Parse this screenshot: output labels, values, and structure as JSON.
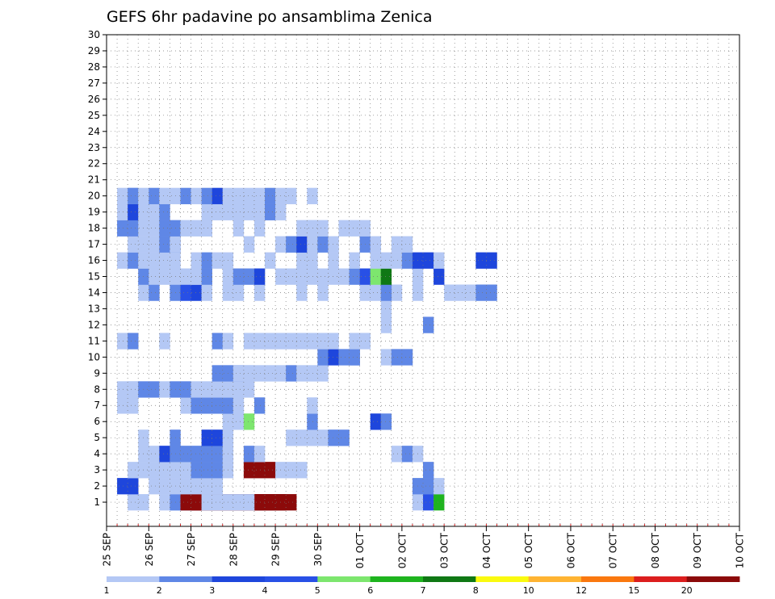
{
  "chart_data": {
    "type": "heatmap",
    "title": "GEFS 6hr padavine po ansamblima Zenica",
    "xlabel": "",
    "ylabel": "",
    "x_ticks": [
      "25 SEP",
      "26 SEP",
      "27 SEP",
      "28 SEP",
      "29 SEP",
      "30 SEP",
      "01 OCT",
      "02 OCT",
      "03 OCT",
      "04 OCT",
      "05 OCT",
      "06 OCT",
      "07 OCT",
      "08 OCT",
      "09 OCT",
      "10 OCT"
    ],
    "x_range": [
      "25 SEP 00Z",
      "10 OCT 00Z"
    ],
    "y_ticks": [
      "1",
      "2",
      "3",
      "4",
      "5",
      "6",
      "7",
      "8",
      "9",
      "10",
      "11",
      "12",
      "13",
      "14",
      "15",
      "16",
      "17",
      "18",
      "19",
      "20",
      "21",
      "22",
      "23",
      "24",
      "25",
      "26",
      "27",
      "28",
      "29",
      "30"
    ],
    "grid": true,
    "time_step_hours": 6,
    "colorbar": {
      "labels": [
        "1",
        "2",
        "3",
        "4",
        "5",
        "6",
        "7",
        "8",
        "10",
        "12",
        "15",
        "20"
      ],
      "colors": [
        "#b4c8f5",
        "#5f87e6",
        "#1e46dc",
        "#2850e6",
        "#7de66e",
        "#1eb41e",
        "#0f7814",
        "#fafa0f",
        "#ffb432",
        "#fa780f",
        "#dc1e1e",
        "#8c0a0a"
      ]
    },
    "cells": [
      [
        1,
        2,
        2,
        1
      ],
      [
        1,
        5,
        9,
        1
      ],
      [
        1,
        6,
        9,
        2
      ],
      [
        1,
        7,
        9,
        1
      ],
      [
        1,
        7,
        10,
        12
      ],
      [
        1,
        8,
        10,
        12
      ],
      [
        1,
        9,
        5,
        1
      ],
      [
        1,
        29,
        1,
        1
      ],
      [
        1,
        30,
        1,
        4
      ],
      [
        1,
        31,
        1,
        6
      ],
      [
        2,
        1,
        2,
        3
      ],
      [
        2,
        4,
        2,
        1
      ],
      [
        2,
        6,
        1,
        1
      ],
      [
        2,
        7,
        4,
        1
      ],
      [
        2,
        9,
        1,
        1
      ],
      [
        2,
        29,
        2,
        2
      ],
      [
        2,
        31,
        1,
        1
      ],
      [
        3,
        2,
        3,
        1
      ],
      [
        3,
        5,
        6,
        1
      ],
      [
        3,
        8,
        3,
        2
      ],
      [
        3,
        11,
        1,
        1
      ],
      [
        3,
        13,
        3,
        12
      ],
      [
        3,
        16,
        3,
        1
      ],
      [
        3,
        30,
        1,
        2
      ],
      [
        4,
        3,
        2,
        1
      ],
      [
        4,
        5,
        1,
        3
      ],
      [
        4,
        6,
        5,
        2
      ],
      [
        4,
        11,
        1,
        1
      ],
      [
        4,
        13,
        1,
        2
      ],
      [
        4,
        14,
        1,
        1
      ],
      [
        4,
        27,
        1,
        1
      ],
      [
        4,
        28,
        1,
        2
      ],
      [
        4,
        29,
        1,
        1
      ],
      [
        5,
        3,
        1,
        1
      ],
      [
        5,
        6,
        1,
        2
      ],
      [
        5,
        9,
        2,
        3
      ],
      [
        5,
        11,
        1,
        1
      ],
      [
        5,
        17,
        2,
        1
      ],
      [
        5,
        19,
        3,
        1
      ],
      [
        5,
        21,
        2,
        2
      ],
      [
        6,
        11,
        1,
        1
      ],
      [
        6,
        12,
        1,
        1
      ],
      [
        6,
        13,
        1,
        5
      ],
      [
        6,
        19,
        1,
        2
      ],
      [
        6,
        25,
        1,
        3
      ],
      [
        6,
        26,
        1,
        2
      ],
      [
        7,
        1,
        1,
        1
      ],
      [
        7,
        2,
        1,
        1
      ],
      [
        7,
        7,
        1,
        1
      ],
      [
        7,
        8,
        1,
        2
      ],
      [
        7,
        9,
        1,
        2
      ],
      [
        7,
        10,
        2,
        2
      ],
      [
        7,
        11,
        1,
        2
      ],
      [
        7,
        12,
        1,
        1
      ],
      [
        7,
        14,
        1,
        2
      ],
      [
        7,
        19,
        1,
        1
      ],
      [
        8,
        1,
        2,
        1
      ],
      [
        8,
        2,
        1,
        1
      ],
      [
        8,
        3,
        2,
        2
      ],
      [
        8,
        5,
        1,
        1
      ],
      [
        8,
        6,
        1,
        2
      ],
      [
        8,
        7,
        1,
        2
      ],
      [
        8,
        8,
        1,
        1
      ],
      [
        8,
        9,
        1,
        1
      ],
      [
        8,
        10,
        2,
        1
      ],
      [
        8,
        11,
        3,
        1
      ],
      [
        8,
        12,
        1,
        1
      ],
      [
        9,
        10,
        3,
        2
      ],
      [
        9,
        12,
        2,
        1
      ],
      [
        9,
        13,
        1,
        1
      ],
      [
        9,
        14,
        1,
        1
      ],
      [
        9,
        15,
        2,
        1
      ],
      [
        9,
        17,
        1,
        2
      ],
      [
        9,
        18,
        1,
        1
      ],
      [
        9,
        19,
        1,
        1
      ],
      [
        9,
        20,
        1,
        1
      ],
      [
        10,
        20,
        1,
        2
      ],
      [
        10,
        21,
        1,
        3
      ],
      [
        10,
        22,
        2,
        2
      ],
      [
        10,
        23,
        1,
        2
      ],
      [
        10,
        26,
        1,
        1
      ],
      [
        10,
        27,
        2,
        2
      ],
      [
        11,
        1,
        1,
        1
      ],
      [
        11,
        2,
        1,
        2
      ],
      [
        11,
        5,
        1,
        1
      ],
      [
        11,
        10,
        1,
        2
      ],
      [
        11,
        11,
        1,
        1
      ],
      [
        11,
        13,
        1,
        1
      ],
      [
        11,
        14,
        1,
        1
      ],
      [
        11,
        15,
        3,
        1
      ],
      [
        11,
        18,
        1,
        1
      ],
      [
        11,
        19,
        2,
        1
      ],
      [
        11,
        21,
        1,
        1
      ],
      [
        11,
        23,
        1,
        1
      ],
      [
        11,
        24,
        1,
        1
      ],
      [
        12,
        26,
        1,
        1
      ],
      [
        12,
        30,
        1,
        2
      ],
      [
        13,
        26,
        1,
        1
      ],
      [
        14,
        3,
        1,
        1
      ],
      [
        14,
        4,
        1,
        2
      ],
      [
        14,
        6,
        1,
        2
      ],
      [
        14,
        7,
        1,
        4
      ],
      [
        14,
        8,
        1,
        3
      ],
      [
        14,
        9,
        1,
        1
      ],
      [
        14,
        11,
        1,
        1
      ],
      [
        14,
        12,
        1,
        1
      ],
      [
        14,
        14,
        1,
        1
      ],
      [
        14,
        18,
        1,
        1
      ],
      [
        14,
        20,
        1,
        1
      ],
      [
        14,
        24,
        1,
        1
      ],
      [
        14,
        25,
        3,
        1
      ],
      [
        14,
        26,
        1,
        2
      ],
      [
        14,
        29,
        1,
        1
      ],
      [
        14,
        32,
        3,
        1
      ],
      [
        14,
        35,
        2,
        2
      ],
      [
        15,
        3,
        1,
        2
      ],
      [
        15,
        4,
        1,
        1
      ],
      [
        15,
        5,
        1,
        1
      ],
      [
        15,
        6,
        3,
        1
      ],
      [
        15,
        8,
        1,
        1
      ],
      [
        15,
        9,
        1,
        2
      ],
      [
        15,
        11,
        1,
        1
      ],
      [
        15,
        12,
        1,
        2
      ],
      [
        15,
        13,
        1,
        2
      ],
      [
        15,
        14,
        1,
        3
      ],
      [
        15,
        16,
        1,
        1
      ],
      [
        15,
        17,
        1,
        1
      ],
      [
        15,
        18,
        1,
        1
      ],
      [
        15,
        19,
        1,
        1
      ],
      [
        15,
        20,
        2,
        1
      ],
      [
        15,
        22,
        1,
        1
      ],
      [
        15,
        23,
        1,
        2
      ],
      [
        15,
        24,
        1,
        4
      ],
      [
        15,
        25,
        1,
        5
      ],
      [
        15,
        26,
        1,
        7
      ],
      [
        15,
        29,
        1,
        1
      ],
      [
        15,
        31,
        1,
        3
      ],
      [
        16,
        1,
        1,
        1
      ],
      [
        16,
        2,
        1,
        2
      ],
      [
        16,
        3,
        1,
        1
      ],
      [
        16,
        4,
        1,
        1
      ],
      [
        16,
        5,
        2,
        1
      ],
      [
        16,
        8,
        1,
        1
      ],
      [
        16,
        9,
        1,
        2
      ],
      [
        16,
        10,
        1,
        1
      ],
      [
        16,
        11,
        1,
        1
      ],
      [
        16,
        15,
        1,
        1
      ],
      [
        16,
        18,
        2,
        1
      ],
      [
        16,
        21,
        1,
        1
      ],
      [
        16,
        23,
        1,
        1
      ],
      [
        16,
        25,
        3,
        1
      ],
      [
        16,
        28,
        1,
        2
      ],
      [
        16,
        29,
        1,
        3
      ],
      [
        16,
        30,
        1,
        3
      ],
      [
        16,
        31,
        1,
        1
      ],
      [
        16,
        35,
        2,
        3
      ],
      [
        17,
        2,
        1,
        1
      ],
      [
        17,
        3,
        1,
        1
      ],
      [
        17,
        4,
        2,
        1
      ],
      [
        17,
        5,
        2,
        2
      ],
      [
        17,
        6,
        1,
        1
      ],
      [
        17,
        13,
        1,
        1
      ],
      [
        17,
        16,
        2,
        1
      ],
      [
        17,
        17,
        2,
        2
      ],
      [
        17,
        18,
        1,
        3
      ],
      [
        17,
        19,
        1,
        1
      ],
      [
        17,
        20,
        1,
        2
      ],
      [
        17,
        21,
        1,
        1
      ],
      [
        17,
        24,
        1,
        2
      ],
      [
        17,
        25,
        1,
        1
      ],
      [
        17,
        27,
        2,
        1
      ],
      [
        18,
        1,
        1,
        2
      ],
      [
        18,
        2,
        1,
        2
      ],
      [
        18,
        3,
        1,
        1
      ],
      [
        18,
        4,
        1,
        1
      ],
      [
        18,
        5,
        2,
        2
      ],
      [
        18,
        7,
        1,
        1
      ],
      [
        18,
        8,
        2,
        1
      ],
      [
        18,
        9,
        1,
        1
      ],
      [
        18,
        12,
        1,
        1
      ],
      [
        18,
        14,
        1,
        1
      ],
      [
        18,
        18,
        2,
        1
      ],
      [
        18,
        19,
        1,
        1
      ],
      [
        18,
        20,
        1,
        1
      ],
      [
        18,
        22,
        2,
        1
      ],
      [
        18,
        24,
        1,
        1
      ],
      [
        19,
        1,
        1,
        1
      ],
      [
        19,
        2,
        1,
        3
      ],
      [
        19,
        3,
        1,
        1
      ],
      [
        19,
        4,
        1,
        1
      ],
      [
        19,
        5,
        1,
        2
      ],
      [
        19,
        9,
        1,
        1
      ],
      [
        19,
        10,
        1,
        1
      ],
      [
        19,
        11,
        1,
        1
      ],
      [
        19,
        12,
        1,
        1
      ],
      [
        19,
        13,
        1,
        1
      ],
      [
        19,
        14,
        1,
        1
      ],
      [
        19,
        15,
        1,
        2
      ],
      [
        19,
        16,
        1,
        1
      ],
      [
        20,
        1,
        2,
        1
      ],
      [
        20,
        2,
        1,
        2
      ],
      [
        20,
        3,
        1,
        1
      ],
      [
        20,
        4,
        1,
        2
      ],
      [
        20,
        5,
        1,
        1
      ],
      [
        20,
        6,
        1,
        1
      ],
      [
        20,
        7,
        1,
        2
      ],
      [
        20,
        8,
        1,
        1
      ],
      [
        20,
        9,
        1,
        2
      ],
      [
        20,
        10,
        1,
        3
      ],
      [
        20,
        11,
        1,
        1
      ],
      [
        20,
        12,
        1,
        1
      ],
      [
        20,
        13,
        1,
        1
      ],
      [
        20,
        14,
        1,
        1
      ],
      [
        20,
        15,
        1,
        2
      ],
      [
        20,
        16,
        1,
        1
      ],
      [
        20,
        17,
        1,
        1
      ],
      [
        20,
        19,
        1,
        1
      ]
    ]
  }
}
